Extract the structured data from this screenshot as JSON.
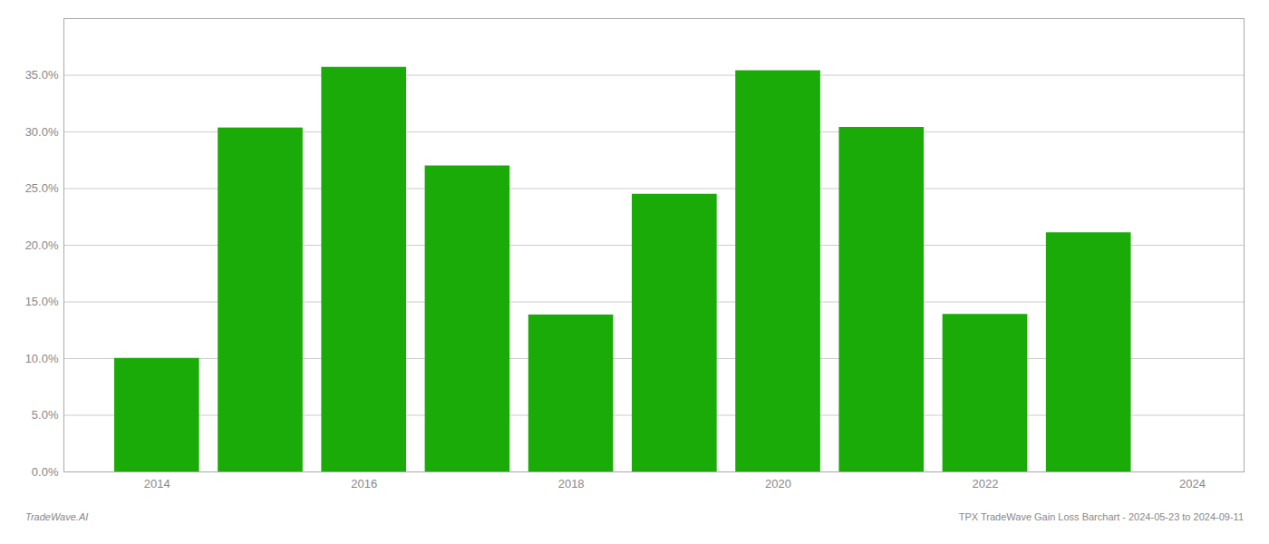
{
  "chart_data": {
    "type": "bar",
    "x": [
      2014,
      2015,
      2016,
      2017,
      2018,
      2019,
      2020,
      2021,
      2022,
      2023
    ],
    "values": [
      0.1002,
      0.3035,
      0.357,
      0.27,
      0.1385,
      0.245,
      0.354,
      0.304,
      0.139,
      0.211
    ],
    "color": "#1aab08",
    "xlim": [
      2013.1,
      2024.5
    ],
    "xticks": [
      2014,
      2016,
      2018,
      2020,
      2022,
      2024
    ],
    "ylim": [
      0,
      0.4
    ],
    "yticks": [
      {
        "value": 0.0,
        "label": "0.0%"
      },
      {
        "value": 0.05,
        "label": "5.0%"
      },
      {
        "value": 0.1,
        "label": "10.0%"
      },
      {
        "value": 0.15,
        "label": "15.0%"
      },
      {
        "value": 0.2,
        "label": "20.0%"
      },
      {
        "value": 0.25,
        "label": "25.0%"
      },
      {
        "value": 0.3,
        "label": "30.0%"
      },
      {
        "value": 0.35,
        "label": "35.0%"
      }
    ],
    "grid": true,
    "annotations": [
      "TradeWave.AI",
      "TPX TradeWave Gain Loss Barchart - 2024-05-23 to 2024-09-11"
    ]
  }
}
